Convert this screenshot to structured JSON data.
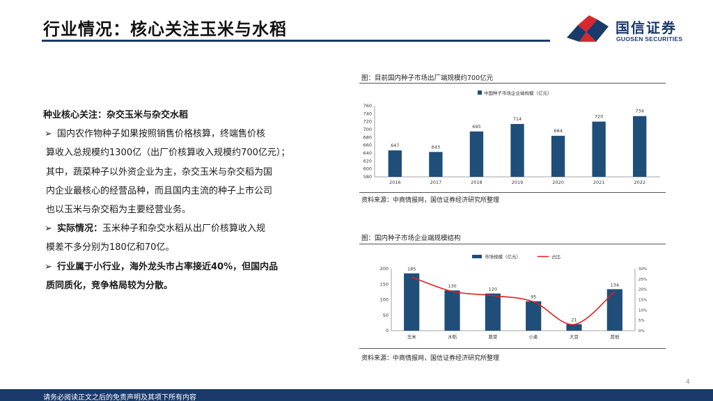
{
  "header": {
    "title": "行业情况：核心关注玉米与水稻",
    "brand_name": "国信证券",
    "brand_name_en": "GUOSEN SECURITIES",
    "logo_colors": {
      "red": "#d7282f",
      "blue": "#1a3a6b"
    }
  },
  "left_text": {
    "heading": "种业核心关注：杂交玉米与杂交水稻",
    "bullet_mark": "➢",
    "bullet1": {
      "line1": "国内农作物种子如果按照销售价格核算，终端售价核",
      "line2": "算收入总规模约1300亿（出厂价核算收入规模约700亿元）；",
      "line3": "其中，蔬菜种子以外资企业为主，杂交玉米与杂交稻为国",
      "line4": "内企业最核心的经营品种，而且国内主流的种子上市公司",
      "line5": "也以玉米与杂交稻为主要经营业务。"
    },
    "bullet2": {
      "bold": "实际情况：",
      "line1": "玉米种子和杂交水稻从出厂价核算收入规",
      "line2": "模差不多分别为180亿和70亿。"
    },
    "bullet3": {
      "line1": "行业属于小行业，海外龙头市占率接近40%，但国内品",
      "line2": "质同质化，竞争格局较为分散。"
    }
  },
  "figure1": {
    "caption": "图：目前国内种子市场出厂端规模约700亿元",
    "source": "资料来源：中商情报网，国信证券经济研究所整理"
  },
  "figure2": {
    "caption": "图：国内种子市场企业端规模结构",
    "source": "资料来源：中商情报网，国信证券经济研究所整理"
  },
  "chart_data": [
    {
      "type": "bar",
      "categories": [
        "2016",
        "2017",
        "2018",
        "2019",
        "2020",
        "2021",
        "2022"
      ],
      "series": [
        {
          "name": "中国种子市场企业端规模（亿元）",
          "values": [
            647,
            643,
            695,
            714,
            684,
            720,
            734
          ],
          "color": "#1f4e79"
        }
      ],
      "ylim": [
        580,
        760
      ],
      "yticks": [
        580,
        600,
        620,
        640,
        660,
        680,
        700,
        720,
        740,
        760
      ],
      "legend_position": "top-center",
      "grid": false
    },
    {
      "type": "bar",
      "categories": [
        "玉米",
        "水稻",
        "蔬菜",
        "小麦",
        "大豆",
        "其他"
      ],
      "series": [
        {
          "name": "市场规模（亿元）",
          "values": [
            185,
            130,
            120,
            95,
            21,
            134
          ],
          "color": "#1f4e79",
          "axis": "left"
        },
        {
          "name": "占比",
          "values": [
            26,
            19,
            17,
            14,
            3,
            19
          ],
          "color": "#e02020",
          "type": "line",
          "axis": "right"
        }
      ],
      "ylim": [
        0,
        200
      ],
      "yticks": [
        0,
        50,
        100,
        150,
        200
      ],
      "y2lim": [
        0,
        30
      ],
      "y2ticks": [
        "0%",
        "5%",
        "10%",
        "15%",
        "20%",
        "25%",
        "30%"
      ],
      "legend_position": "top-center",
      "grid": false
    }
  ],
  "footer": {
    "disclaimer": "请务必阅读正文之后的免责声明及其项下所有内容",
    "page_number": "4"
  }
}
